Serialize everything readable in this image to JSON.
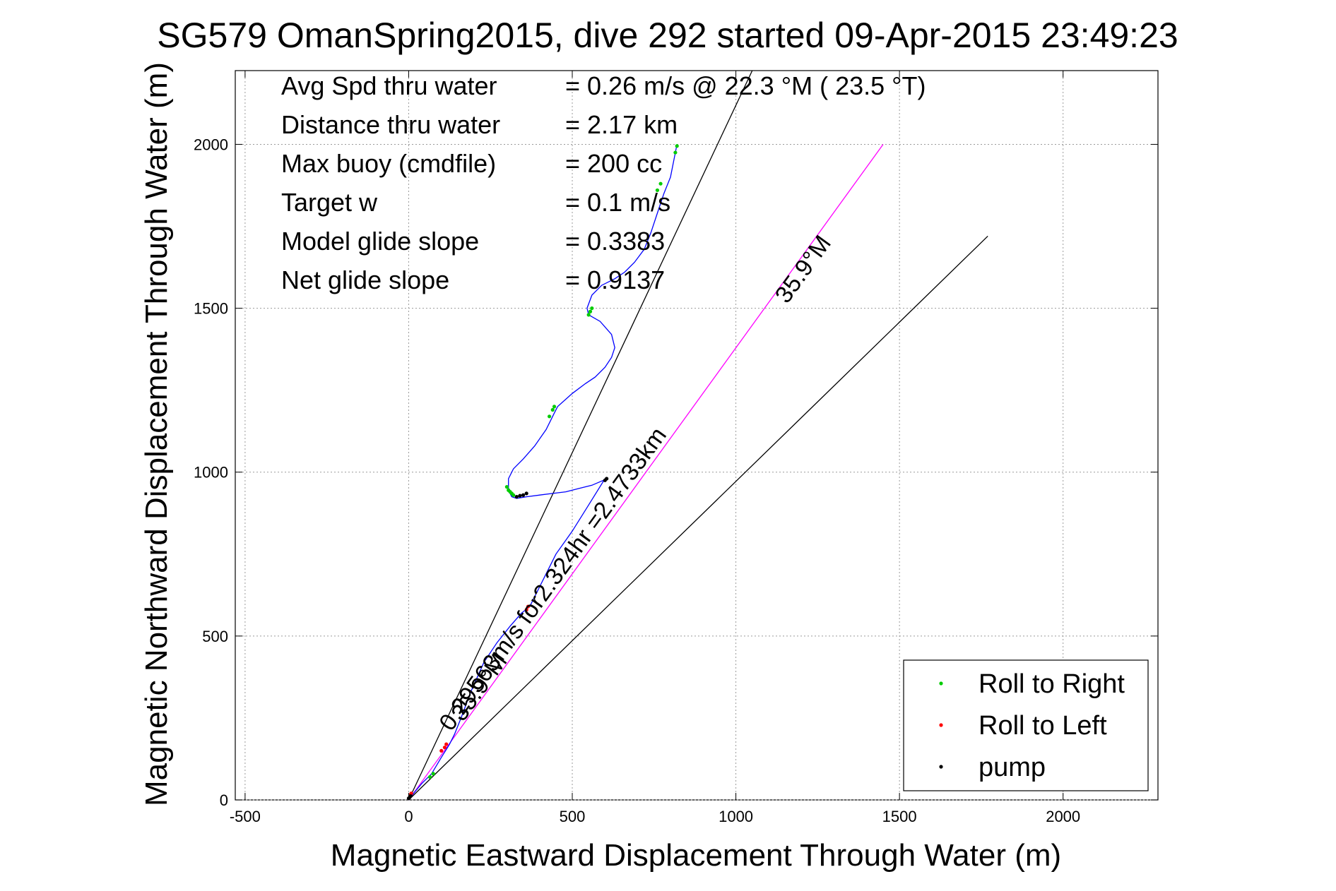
{
  "chart_data": {
    "type": "scatter",
    "title": "SG579 OmanSpring2015, dive 292 started 09-Apr-2015 23:49:23",
    "xlabel": "Magnetic Eastward Displacement Through Water (m)",
    "ylabel": "Magnetic Northward Displacement Through Water (m)",
    "xlim": [
      -530,
      2290
    ],
    "ylim": [
      0,
      2225
    ],
    "xticks": [
      -500,
      0,
      500,
      1000,
      1500,
      2000
    ],
    "yticks": [
      0,
      500,
      1000,
      1500,
      2000
    ],
    "xtick_labels": [
      "-500",
      "0",
      "500",
      "1000",
      "1500",
      "2000"
    ],
    "ytick_labels": [
      "0",
      "500",
      "1000",
      "1500",
      "2000"
    ],
    "grid": true,
    "legend_position": "bottom-right",
    "info_rows": [
      {
        "label": "Avg Spd thru water",
        "value": "=  0.26 m/s @  22.3 °M ( 23.5 °T)"
      },
      {
        "label": "Distance thru water",
        "value": "=  2.17 km"
      },
      {
        "label": "Max buoy (cmdfile)",
        "value": "= 200 cc"
      },
      {
        "label": "Target w",
        "value": "= 0.1 m/s"
      },
      {
        "label": "Model glide slope",
        "value": "= 0.3383"
      },
      {
        "label": "Net glide slope",
        "value": "= 0.9137"
      }
    ],
    "reference_lines": [
      {
        "name": "upper",
        "x": [
          0,
          1050
        ],
        "y": [
          0,
          2225
        ],
        "color": "#000000"
      },
      {
        "name": "lower",
        "x": [
          0,
          1770
        ],
        "y": [
          0,
          1720
        ],
        "color": "#000000"
      },
      {
        "name": "course",
        "x": [
          0,
          1450
        ],
        "y": [
          0,
          2000
        ],
        "color": "#ff00ff"
      }
    ],
    "annotations": [
      {
        "text": "35.9°M",
        "x": 1225,
        "y": 1605,
        "angle": -54
      },
      {
        "text": "0.29563m/s for2.324hr =2.4733km",
        "x": 460,
        "y": 660,
        "angle": -54
      },
      {
        "text": "35.9°M",
        "x": 235,
        "y": 330,
        "angle": -54
      }
    ],
    "track": {
      "color": "#0000ff",
      "x": [
        0,
        15,
        40,
        70,
        100,
        125,
        140,
        160,
        190,
        230,
        270,
        310,
        345,
        370,
        380,
        395,
        420,
        450,
        500,
        550,
        600,
        595,
        560,
        520,
        480,
        440,
        400,
        360,
        330,
        315,
        305,
        305,
        320,
        350,
        385,
        420,
        445,
        455,
        500,
        540,
        570,
        600,
        620,
        630,
        620,
        585,
        550,
        545,
        560,
        590,
        630,
        660,
        690,
        720,
        740,
        760,
        780,
        800,
        810,
        820
      ],
      "y": [
        0,
        20,
        50,
        80,
        130,
        170,
        200,
        250,
        330,
        420,
        480,
        530,
        570,
        590,
        610,
        640,
        690,
        750,
        820,
        900,
        980,
        975,
        960,
        950,
        940,
        935,
        930,
        925,
        920,
        925,
        945,
        980,
        1010,
        1040,
        1080,
        1130,
        1180,
        1200,
        1240,
        1270,
        1290,
        1320,
        1350,
        1380,
        1420,
        1460,
        1480,
        1500,
        1540,
        1570,
        1590,
        1610,
        1640,
        1680,
        1730,
        1790,
        1850,
        1900,
        1950,
        2000
      ]
    },
    "series": [
      {
        "name": "Roll to Right",
        "color": "#00cc00",
        "x": [
          65,
          75,
          300,
          305,
          310,
          315,
          320,
          430,
          440,
          445,
          550,
          555,
          560,
          760,
          770,
          815,
          820
        ],
        "y": [
          70,
          80,
          955,
          945,
          940,
          935,
          930,
          1170,
          1190,
          1200,
          1480,
          1490,
          1500,
          1860,
          1880,
          1975,
          1995
        ]
      },
      {
        "name": "Roll to Left",
        "color": "#ff0000",
        "x": [
          5,
          8,
          100,
          110,
          115,
          360,
          365
        ],
        "y": [
          15,
          20,
          150,
          160,
          170,
          580,
          590
        ]
      },
      {
        "name": "pump",
        "color": "#000000",
        "x": [
          0,
          3,
          6,
          330,
          340,
          350,
          360,
          600,
          605
        ],
        "y": [
          5,
          8,
          12,
          925,
          928,
          930,
          935,
          975,
          980
        ]
      }
    ]
  }
}
